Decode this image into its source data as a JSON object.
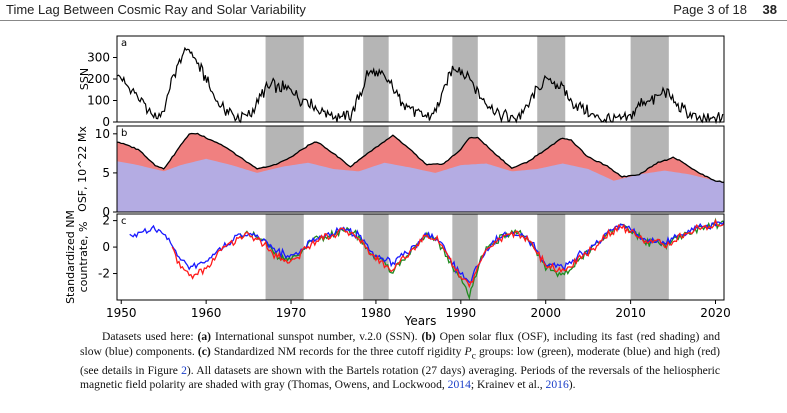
{
  "header": {
    "title": "Time Lag Between Cosmic Ray and Solar Variability",
    "page_label": "Page 3 of 18",
    "page_number": "38"
  },
  "colors": {
    "reversal_shading": "#b5b5b5",
    "fast_osf": "#f08080",
    "slow_osf": "#a9b4f5",
    "low_rigidity": "#1f8a1f",
    "moderate_rigidity": "#1a1aff",
    "high_rigidity": "#ff1a1a"
  },
  "chart_data": {
    "type": "line",
    "xlabel": "Years",
    "xlim": [
      1949.5,
      2021
    ],
    "x_ticks": [
      1950,
      1960,
      1970,
      1980,
      1990,
      2000,
      2010,
      2020
    ],
    "reversal_periods": [
      [
        1967,
        1971.5
      ],
      [
        1978.5,
        1981.5
      ],
      [
        1989,
        1992
      ],
      [
        1999,
        2002.3
      ],
      [
        2010,
        2014.5
      ]
    ],
    "panels": [
      {
        "label": "a",
        "ylabel": "SSN",
        "ylim": [
          0,
          400
        ],
        "y_ticks": [
          0,
          100,
          200,
          300
        ],
        "series": [
          {
            "name": "SSN",
            "color": "#000000",
            "x": [
              1949.5,
              1950,
              1951,
              1952,
              1953,
              1954,
              1955,
              1956,
              1957,
              1958,
              1959,
              1960,
              1961,
              1962,
              1963,
              1964,
              1965,
              1966,
              1967,
              1968,
              1969,
              1970,
              1971,
              1972,
              1973,
              1974,
              1975,
              1976,
              1977,
              1978,
              1979,
              1980,
              1981,
              1982,
              1983,
              1984,
              1985,
              1986,
              1987,
              1988,
              1989,
              1990,
              1991,
              1992,
              1993,
              1994,
              1995,
              1996,
              1997,
              1998,
              1999,
              2000,
              2001,
              2002,
              2003,
              2004,
              2005,
              2006,
              2007,
              2008,
              2009,
              2010,
              2011,
              2012,
              2013,
              2014,
              2015,
              2016,
              2017,
              2018,
              2019,
              2020,
              2021
            ],
            "y": [
              230,
              200,
              160,
              110,
              60,
              20,
              50,
              200,
              300,
              340,
              270,
              200,
              120,
              60,
              40,
              20,
              30,
              80,
              160,
              170,
              160,
              150,
              110,
              100,
              60,
              50,
              25,
              20,
              30,
              110,
              230,
              220,
              210,
              160,
              100,
              70,
              30,
              20,
              50,
              150,
              250,
              240,
              210,
              140,
              90,
              50,
              30,
              15,
              30,
              80,
              150,
              200,
              180,
              160,
              100,
              70,
              50,
              25,
              15,
              10,
              10,
              25,
              80,
              100,
              110,
              140,
              100,
              60,
              30,
              15,
              8,
              10,
              35
            ]
          }
        ]
      },
      {
        "label": "b",
        "ylabel": "OSF, 10^22 Mx",
        "ylim": [
          0,
          11
        ],
        "y_ticks": [
          0,
          5,
          10
        ],
        "series": [
          {
            "name": "Total OSF",
            "color": "#000000",
            "x": [
              1949.5,
              1952,
              1954,
              1955,
              1956,
              1957,
              1958,
              1959,
              1960,
              1962,
              1964,
              1966,
              1968,
              1970,
              1972,
              1973,
              1975,
              1977,
              1979,
              1981,
              1982,
              1984,
              1986,
              1988,
              1990,
              1991,
              1992,
              1994,
              1996,
              1998,
              2000,
              2002,
              2003,
              2005,
              2007,
              2009,
              2011,
              2013,
              2015,
              2016,
              2018,
              2020,
              2021
            ],
            "y": [
              9,
              8,
              6,
              5.5,
              7,
              8.5,
              10,
              10,
              9.5,
              8.5,
              7,
              5.5,
              6,
              7,
              8.5,
              9,
              7.5,
              5.8,
              7.5,
              9,
              9.8,
              8,
              6,
              6.2,
              8,
              9.5,
              9.5,
              7.5,
              5.6,
              6.5,
              8,
              9.5,
              9.2,
              7,
              6,
              4.5,
              4.8,
              6.2,
              7,
              6.5,
              5,
              4,
              3.8
            ]
          },
          {
            "name": "Slow OSF",
            "color": "#a9b4f5",
            "x": [
              1949.5,
              1952,
              1955,
              1957,
              1960,
              1963,
              1966,
              1969,
              1972,
              1975,
              1978,
              1981,
              1984,
              1987,
              1990,
              1993,
              1996,
              1999,
              2002,
              2005,
              2008,
              2011,
              2014,
              2017,
              2020,
              2021
            ],
            "y": [
              6.5,
              6,
              5.2,
              6,
              6.8,
              6,
              5,
              5.8,
              6.3,
              5.5,
              5.2,
              6.3,
              5.7,
              5,
              6,
              6.2,
              5.2,
              5.5,
              6.2,
              5.5,
              4,
              4.8,
              5.3,
              4.8,
              4,
              3.8
            ]
          }
        ]
      },
      {
        "label": "c",
        "ylabel": "Standardized NM countrate, %",
        "ylim": [
          -4,
          2.5
        ],
        "y_ticks": [
          -2,
          0,
          2
        ],
        "series": [
          {
            "name": "low (green)",
            "color": "#1f8a1f",
            "x": [
              1964,
              1966,
              1967,
              1968,
              1969,
              1970,
              1971,
              1972,
              1973,
              1974,
              1975,
              1976,
              1977,
              1978,
              1979,
              1980,
              1981,
              1982,
              1983,
              1984,
              1985,
              1986,
              1987,
              1988,
              1989,
              1990,
              1991,
              1992,
              1993,
              1994,
              1995,
              1996,
              1997,
              1998,
              1999,
              2000,
              2001,
              2002,
              2003,
              2004,
              2005,
              2006,
              2007,
              2008,
              2009,
              2010,
              2011,
              2012,
              2013,
              2014,
              2015,
              2016,
              2017,
              2018,
              2019,
              2020,
              2021
            ],
            "y": [
              1.0,
              0.8,
              0.3,
              -0.4,
              -0.8,
              -1.0,
              -0.5,
              0.2,
              0.6,
              0.8,
              1.0,
              1.2,
              1.2,
              0.8,
              -0.2,
              -0.8,
              -1.2,
              -1.8,
              -1.0,
              -0.5,
              0.2,
              0.8,
              0.6,
              -0.2,
              -1.5,
              -2.5,
              -3.5,
              -1.5,
              -0.3,
              0.4,
              0.8,
              1.0,
              1.0,
              0.5,
              -0.5,
              -1.5,
              -1.8,
              -2.0,
              -1.8,
              -0.8,
              -0.5,
              0.2,
              0.8,
              1.2,
              1.6,
              1.3,
              0.8,
              0.3,
              0.4,
              0.2,
              0.5,
              0.8,
              1.1,
              1.4,
              1.6,
              1.8,
              1.7
            ]
          },
          {
            "name": "moderate (blue)",
            "color": "#1a1aff",
            "x": [
              1951,
              1952,
              1953,
              1954,
              1955,
              1956,
              1957,
              1958,
              1959,
              1960,
              1961,
              1962,
              1963,
              1964,
              1965,
              1966,
              1967,
              1968,
              1969,
              1970,
              1971,
              1972,
              1973,
              1974,
              1975,
              1976,
              1977,
              1978,
              1979,
              1980,
              1981,
              1982,
              1983,
              1984,
              1985,
              1986,
              1987,
              1988,
              1989,
              1990,
              1991,
              1992,
              1993,
              1994,
              1995,
              1996,
              1997,
              1998,
              1999,
              2000,
              2001,
              2002,
              2003,
              2004,
              2005,
              2006,
              2007,
              2008,
              2009,
              2010,
              2011,
              2012,
              2013,
              2014,
              2015,
              2016,
              2017,
              2018,
              2019,
              2020,
              2021
            ],
            "y": [
              0.8,
              1.0,
              1.2,
              1.3,
              0.9,
              0.2,
              -1.0,
              -1.5,
              -1.3,
              -1.0,
              -0.5,
              0.0,
              0.5,
              0.9,
              1.0,
              0.8,
              0.4,
              -0.2,
              -0.5,
              -0.7,
              -0.3,
              0.3,
              0.7,
              0.9,
              1.1,
              1.3,
              1.2,
              0.9,
              0.0,
              -0.6,
              -0.9,
              -1.2,
              -0.6,
              -0.2,
              0.4,
              0.9,
              0.7,
              0.0,
              -1.2,
              -2.0,
              -2.8,
              -1.2,
              -0.2,
              0.5,
              0.9,
              1.1,
              1.0,
              0.6,
              -0.3,
              -1.2,
              -1.4,
              -1.5,
              -1.2,
              -0.6,
              -0.3,
              0.3,
              0.9,
              1.3,
              1.6,
              1.3,
              0.9,
              0.4,
              0.5,
              0.3,
              0.6,
              0.9,
              1.2,
              1.5,
              1.6,
              1.8,
              1.7
            ]
          },
          {
            "name": "high (red)",
            "color": "#ff1a1a",
            "x": [
              1956,
              1957,
              1958,
              1959,
              1960,
              1961,
              1962,
              1963,
              1964,
              1965,
              1966,
              1967,
              1968,
              1969,
              1970,
              1971,
              1972,
              1973,
              1974,
              1975,
              1976,
              1977,
              1978,
              1979,
              1980,
              1981,
              1982,
              1983,
              1984,
              1985,
              1986,
              1987,
              1988,
              1989,
              1990,
              1991,
              1992,
              1993,
              1994,
              1995,
              1996,
              1997,
              1998,
              1999,
              2000,
              2001,
              2002,
              2003,
              2004,
              2005,
              2006,
              2007,
              2008,
              2009,
              2010,
              2011,
              2012,
              2013,
              2014,
              2015,
              2016,
              2017,
              2018,
              2019,
              2020,
              2021
            ],
            "y": [
              0.0,
              -1.5,
              -2.2,
              -2.0,
              -1.6,
              -0.8,
              -0.1,
              0.4,
              0.8,
              0.9,
              0.6,
              0.1,
              -0.5,
              -0.9,
              -1.1,
              -0.6,
              0.1,
              0.5,
              0.8,
              1.0,
              1.2,
              1.1,
              0.7,
              -0.3,
              -0.9,
              -1.3,
              -1.7,
              -1.0,
              -0.4,
              0.3,
              0.8,
              0.6,
              -0.1,
              -1.4,
              -2.2,
              -3.0,
              -1.4,
              -0.3,
              0.4,
              0.8,
              1.0,
              0.9,
              0.5,
              -0.4,
              -1.3,
              -1.6,
              -1.8,
              -1.5,
              -0.7,
              -0.4,
              0.2,
              0.8,
              1.2,
              1.5,
              1.2,
              0.8,
              0.3,
              0.4,
              0.2,
              0.5,
              0.8,
              1.1,
              1.4,
              1.5,
              1.7,
              1.6
            ]
          }
        ]
      }
    ]
  },
  "caption": {
    "intro": "Datasets used here: ",
    "a_label": "(a)",
    "a_text": " International sunspot number, v.2.0 (SSN). ",
    "b_label": "(b)",
    "b_text": " Open solar flux (OSF), including its fast (red shading) and slow (blue) components. ",
    "c_label": "(c)",
    "c_text1": " Standardized NM records for the three cutoff rigidity ",
    "var": "P",
    "var_sub": "c",
    "c_text2": " groups: low (green), moderate (blue) and high (red) (see details in Figure ",
    "fig_ref": "2",
    "c_text3": "). All datasets are shown with the Bartels rotation (27 days) averaging. Periods of the reversals of the heliospheric magnetic field polarity are shaded with gray (Thomas, Owens, and Lockwood, ",
    "ref1_year": "2014",
    "sep": "; Krainev et al., ",
    "ref2_year": "2016",
    "end": ")."
  }
}
